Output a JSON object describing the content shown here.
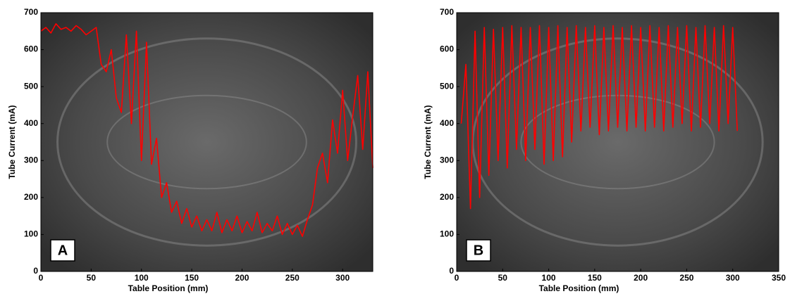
{
  "chart_data": [
    {
      "type": "line",
      "annotation": "A",
      "x_label": "Table Position (mm)",
      "y_label": "Tube Current (mA)",
      "xlim": [
        0,
        330
      ],
      "ylim": [
        0,
        700
      ],
      "xticks": [
        0,
        50,
        100,
        150,
        200,
        250,
        300
      ],
      "yticks": [
        0,
        100,
        200,
        300,
        400,
        500,
        600,
        700
      ],
      "x": [
        0,
        5,
        10,
        15,
        20,
        25,
        30,
        35,
        40,
        45,
        50,
        55,
        60,
        65,
        70,
        75,
        80,
        85,
        90,
        95,
        100,
        105,
        110,
        115,
        120,
        125,
        130,
        135,
        140,
        145,
        150,
        155,
        160,
        165,
        170,
        175,
        180,
        185,
        190,
        195,
        200,
        205,
        210,
        215,
        220,
        225,
        230,
        235,
        240,
        245,
        250,
        255,
        260,
        265,
        270,
        275,
        280,
        285,
        290,
        295,
        300,
        305,
        310,
        315,
        320,
        325,
        330
      ],
      "series": [
        {
          "color": "#ff0000",
          "values": [
            650,
            660,
            645,
            670,
            655,
            660,
            650,
            665,
            655,
            640,
            650,
            660,
            560,
            540,
            600,
            470,
            430,
            640,
            400,
            650,
            300,
            620,
            290,
            360,
            200,
            240,
            160,
            190,
            130,
            170,
            120,
            150,
            110,
            140,
            110,
            160,
            105,
            140,
            110,
            150,
            105,
            135,
            110,
            160,
            105,
            130,
            110,
            150,
            100,
            130,
            100,
            125,
            95,
            140,
            180,
            280,
            320,
            240,
            410,
            320,
            490,
            300,
            420,
            530,
            330,
            540,
            280
          ]
        }
      ]
    },
    {
      "type": "line",
      "annotation": "B",
      "x_label": "Table Position (mm)",
      "y_label": "Tube Current (mA)",
      "xlim": [
        0,
        350
      ],
      "ylim": [
        0,
        700
      ],
      "xticks": [
        0,
        50,
        100,
        150,
        200,
        250,
        300,
        350
      ],
      "yticks": [
        0,
        100,
        200,
        300,
        400,
        500,
        600,
        700
      ],
      "x": [
        5,
        10,
        15,
        20,
        25,
        30,
        35,
        40,
        45,
        50,
        55,
        60,
        65,
        70,
        75,
        80,
        85,
        90,
        95,
        100,
        105,
        110,
        115,
        120,
        125,
        130,
        135,
        140,
        145,
        150,
        155,
        160,
        165,
        170,
        175,
        180,
        185,
        190,
        195,
        200,
        205,
        210,
        215,
        220,
        225,
        230,
        235,
        240,
        245,
        250,
        255,
        260,
        265,
        270,
        275,
        280,
        285,
        290,
        295,
        300,
        305
      ],
      "series": [
        {
          "color": "#ff0000",
          "values": [
            400,
            560,
            170,
            650,
            200,
            660,
            260,
            655,
            300,
            660,
            280,
            665,
            330,
            660,
            300,
            660,
            330,
            665,
            290,
            660,
            300,
            665,
            310,
            660,
            350,
            665,
            380,
            660,
            390,
            665,
            370,
            660,
            380,
            665,
            390,
            660,
            380,
            665,
            390,
            660,
            380,
            665,
            390,
            660,
            380,
            665,
            390,
            660,
            400,
            665,
            380,
            660,
            390,
            665,
            400,
            660,
            380,
            665,
            400,
            660,
            380
          ]
        }
      ]
    }
  ]
}
